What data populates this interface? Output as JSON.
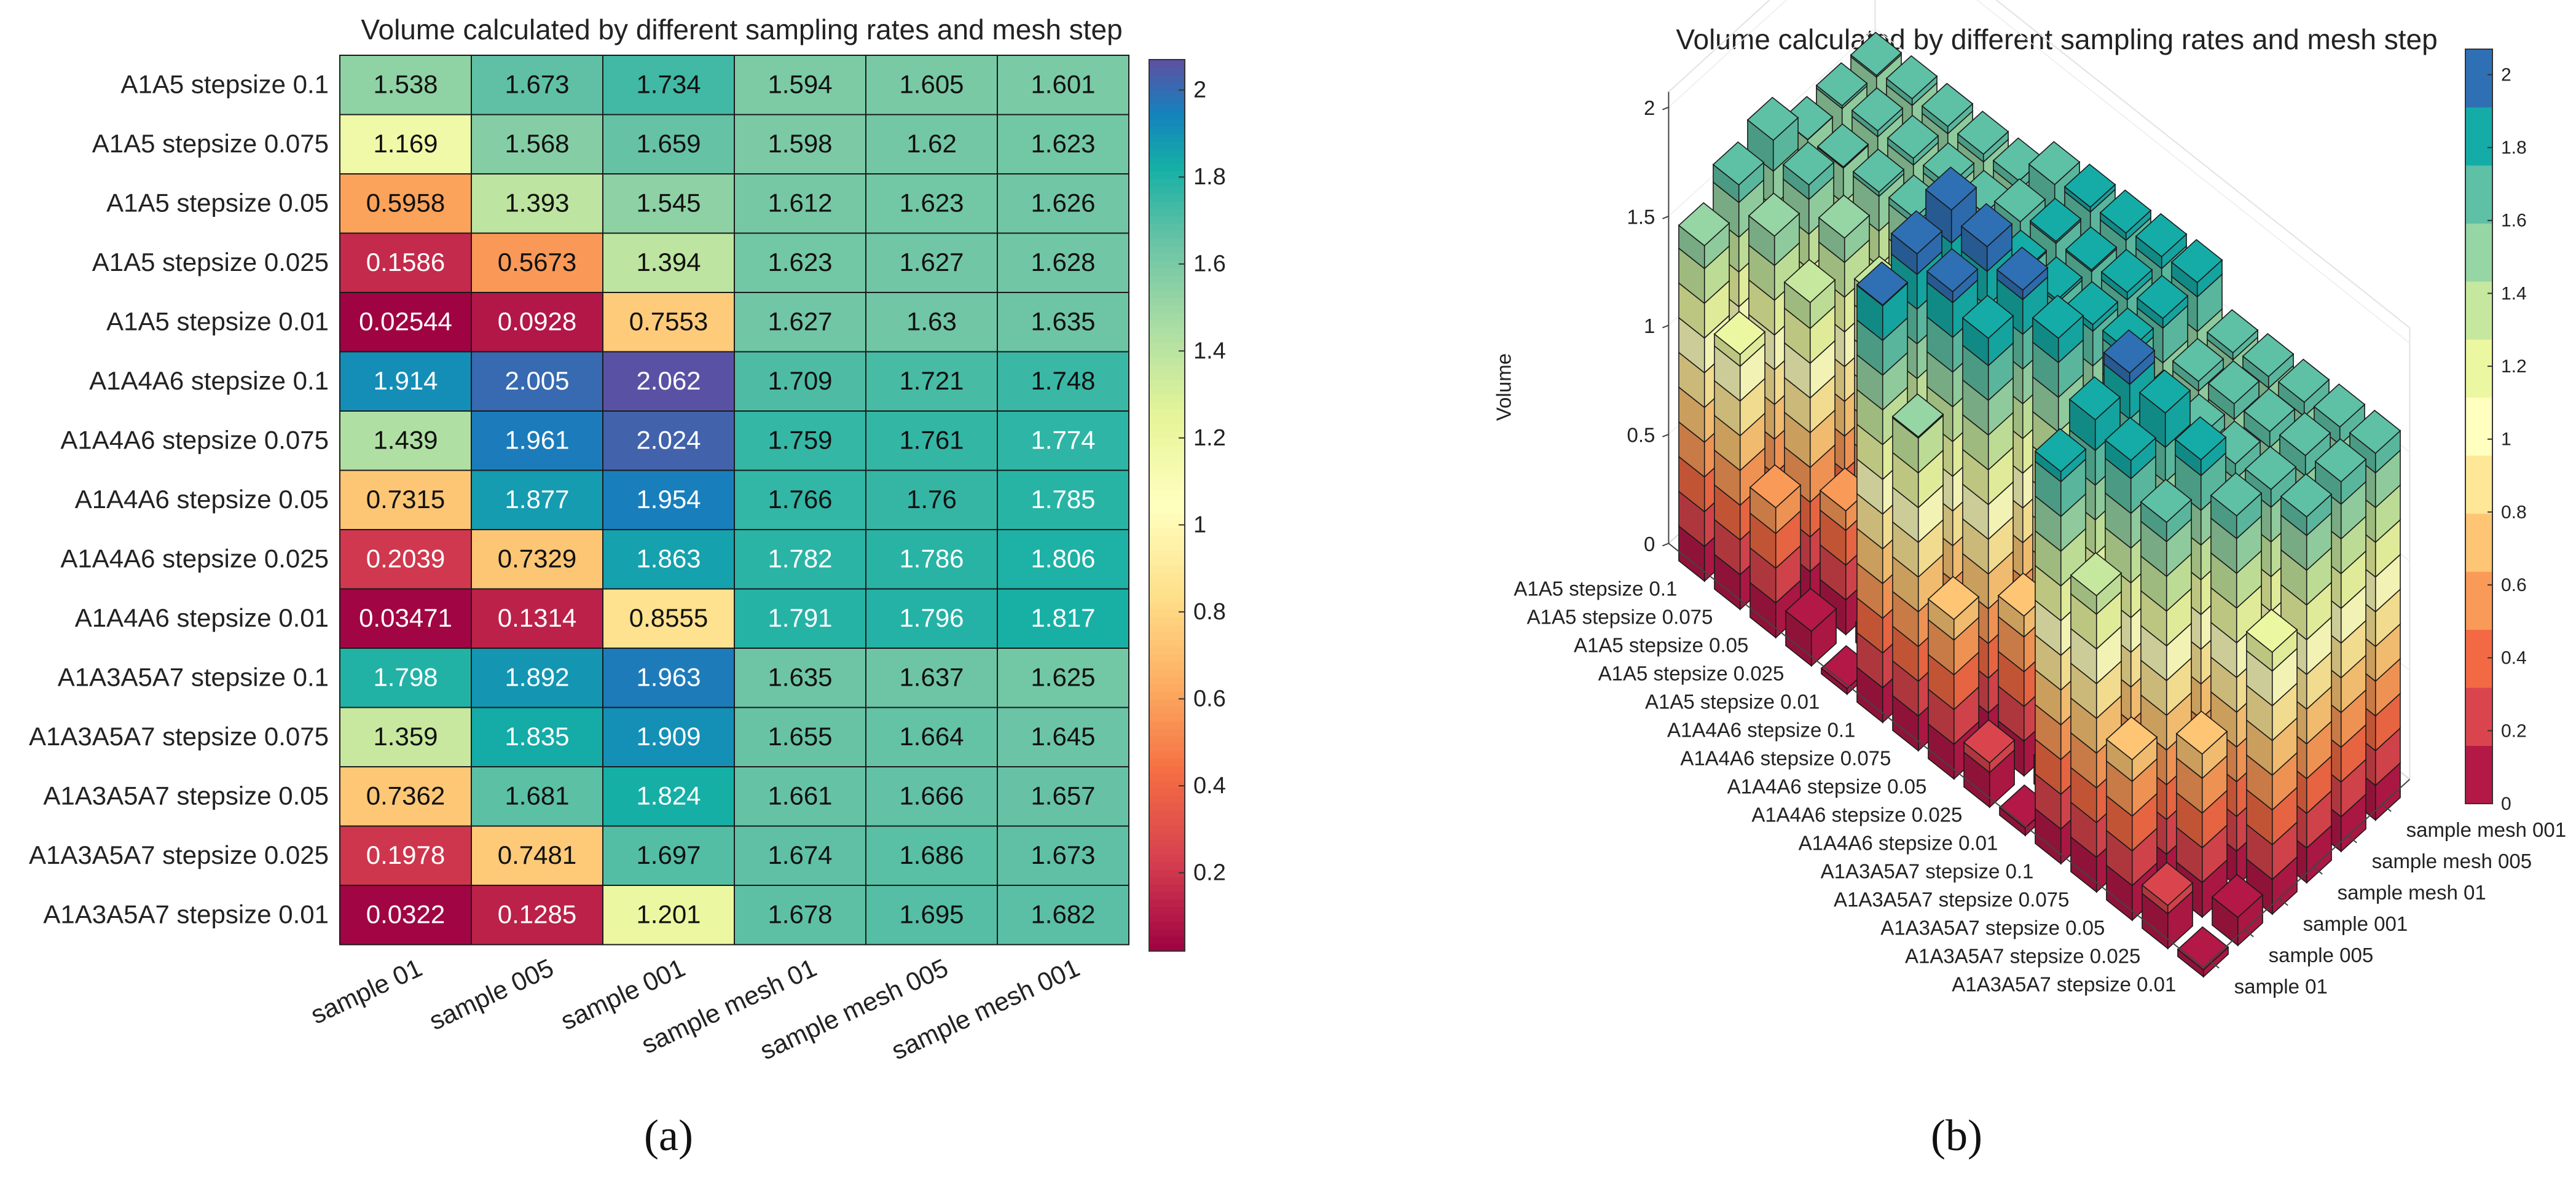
{
  "panel_a_label": "(a)",
  "panel_b_label": "(b)",
  "chart_data": [
    {
      "type": "heatmap",
      "title": "Volume calculated by different sampling rates and mesh step",
      "rows": [
        "A1A5 stepsize 0.1",
        "A1A5 stepsize 0.075",
        "A1A5 stepsize 0.05",
        "A1A5 stepsize 0.025",
        "A1A5 stepsize 0.01",
        "A1A4A6 stepsize 0.1",
        "A1A4A6 stepsize 0.075",
        "A1A4A6 stepsize 0.05",
        "A1A4A6 stepsize 0.025",
        "A1A4A6 stepsize 0.01",
        "A1A3A5A7 stepsize 0.1",
        "A1A3A5A7 stepsize 0.075",
        "A1A3A5A7 stepsize 0.05",
        "A1A3A5A7 stepsize 0.025",
        "A1A3A5A7 stepsize 0.01"
      ],
      "columns": [
        "sample 01",
        "sample 005",
        "sample 001",
        "sample mesh 01",
        "sample mesh 005",
        "sample mesh 001"
      ],
      "cell_labels": [
        [
          "1.538",
          "1.673",
          "1.734",
          "1.594",
          "1.605",
          "1.601"
        ],
        [
          "1.169",
          "1.568",
          "1.659",
          "1.598",
          "1.62",
          "1.623"
        ],
        [
          "0.5958",
          "1.393",
          "1.545",
          "1.612",
          "1.623",
          "1.626"
        ],
        [
          "0.1586",
          "0.5673",
          "1.394",
          "1.623",
          "1.627",
          "1.628"
        ],
        [
          "0.02544",
          "0.0928",
          "0.7553",
          "1.627",
          "1.63",
          "1.635"
        ],
        [
          "1.914",
          "2.005",
          "2.062",
          "1.709",
          "1.721",
          "1.748"
        ],
        [
          "1.439",
          "1.961",
          "2.024",
          "1.759",
          "1.761",
          "1.774"
        ],
        [
          "0.7315",
          "1.877",
          "1.954",
          "1.766",
          "1.76",
          "1.785"
        ],
        [
          "0.2039",
          "0.7329",
          "1.863",
          "1.782",
          "1.786",
          "1.806"
        ],
        [
          "0.03471",
          "0.1314",
          "0.8555",
          "1.791",
          "1.796",
          "1.817"
        ],
        [
          "1.798",
          "1.892",
          "1.963",
          "1.635",
          "1.637",
          "1.625"
        ],
        [
          "1.359",
          "1.835",
          "1.909",
          "1.655",
          "1.664",
          "1.645"
        ],
        [
          "0.7362",
          "1.681",
          "1.824",
          "1.661",
          "1.666",
          "1.657"
        ],
        [
          "0.1978",
          "0.7481",
          "1.697",
          "1.674",
          "1.686",
          "1.673"
        ],
        [
          "0.0322",
          "0.1285",
          "1.201",
          "1.678",
          "1.695",
          "1.682"
        ]
      ],
      "colorbar_ticks": [
        "0.2",
        "0.4",
        "0.6",
        "0.8",
        "1",
        "1.2",
        "1.4",
        "1.6",
        "1.8",
        "2"
      ],
      "colorbar_range": [
        0.02,
        2.07
      ]
    },
    {
      "type": "bar3d",
      "title": "Volume calculated by different sampling rates and mesh step",
      "zlabel": "Volume",
      "z_ticks": [
        "0",
        "0.5",
        "1",
        "1.5",
        "2"
      ],
      "zlim": [
        0,
        2
      ],
      "row_labels": [
        "A1A5 stepsize 0.1",
        "A1A5 stepsize 0.075",
        "A1A5 stepsize 0.05",
        "A1A5 stepsize 0.025",
        "A1A5 stepsize 0.01",
        "A1A4A6 stepsize 0.1",
        "A1A4A6 stepsize 0.075",
        "A1A4A6 stepsize 0.05",
        "A1A4A6 stepsize 0.025",
        "A1A4A6 stepsize 0.01",
        "A1A3A5A7 stepsize 0.1",
        "A1A3A5A7 stepsize 0.075",
        "A1A3A5A7 stepsize 0.05",
        "A1A3A5A7 stepsize 0.025",
        "A1A3A5A7 stepsize 0.01"
      ],
      "column_labels": [
        "sample mesh 001",
        "sample mesh 005",
        "sample mesh 01",
        "sample 001",
        "sample 005",
        "sample 01"
      ],
      "colorbar_ticks": [
        "0",
        "0.2",
        "0.4",
        "0.6",
        "0.8",
        "1",
        "1.2",
        "1.4",
        "1.6",
        "1.8",
        "2"
      ],
      "colorbar_range": [
        0,
        2.07
      ],
      "colorbar_levels": 13,
      "values_source": "same values as heatmap"
    }
  ]
}
